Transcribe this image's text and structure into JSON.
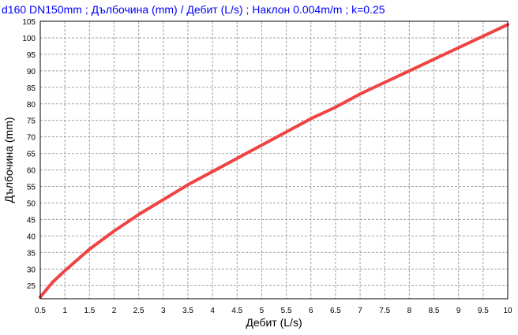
{
  "chart_data": {
    "type": "line",
    "title": "d160 DN150mm ; Дълбочина (mm) / Дебит (L/s) ; Наклон 0.004m/m ; k=0.25",
    "xlabel": "Дебит (L/s)",
    "ylabel": "Дълбочина (mm)",
    "xlim": [
      0.5,
      10
    ],
    "ylim": [
      21,
      105
    ],
    "x_ticks": [
      "0.5",
      "1",
      "1.5",
      "2",
      "2.5",
      "3",
      "3.5",
      "4",
      "4.5",
      "5",
      "5.5",
      "6",
      "6.5",
      "7",
      "7.5",
      "8",
      "8.5",
      "9",
      "9.5",
      "10"
    ],
    "y_ticks": [
      "25",
      "30",
      "35",
      "40",
      "45",
      "50",
      "55",
      "60",
      "65",
      "70",
      "75",
      "80",
      "85",
      "90",
      "95",
      "100",
      "105"
    ],
    "grid": true,
    "series": [
      {
        "color": "#ee4444",
        "x": [
          0.5,
          0.75,
          1.0,
          1.5,
          2.0,
          2.5,
          3.0,
          3.5,
          4.0,
          4.5,
          5.0,
          5.5,
          6.0,
          6.5,
          7.0,
          7.5,
          8.0,
          8.5,
          9.0,
          9.5,
          10.0
        ],
        "y": [
          21.5,
          26,
          29.5,
          36,
          41.5,
          46.5,
          51,
          55.5,
          59.5,
          63.5,
          67.5,
          71.5,
          75.5,
          79,
          83,
          86.5,
          90,
          93.5,
          97,
          100.5,
          104
        ]
      }
    ]
  }
}
